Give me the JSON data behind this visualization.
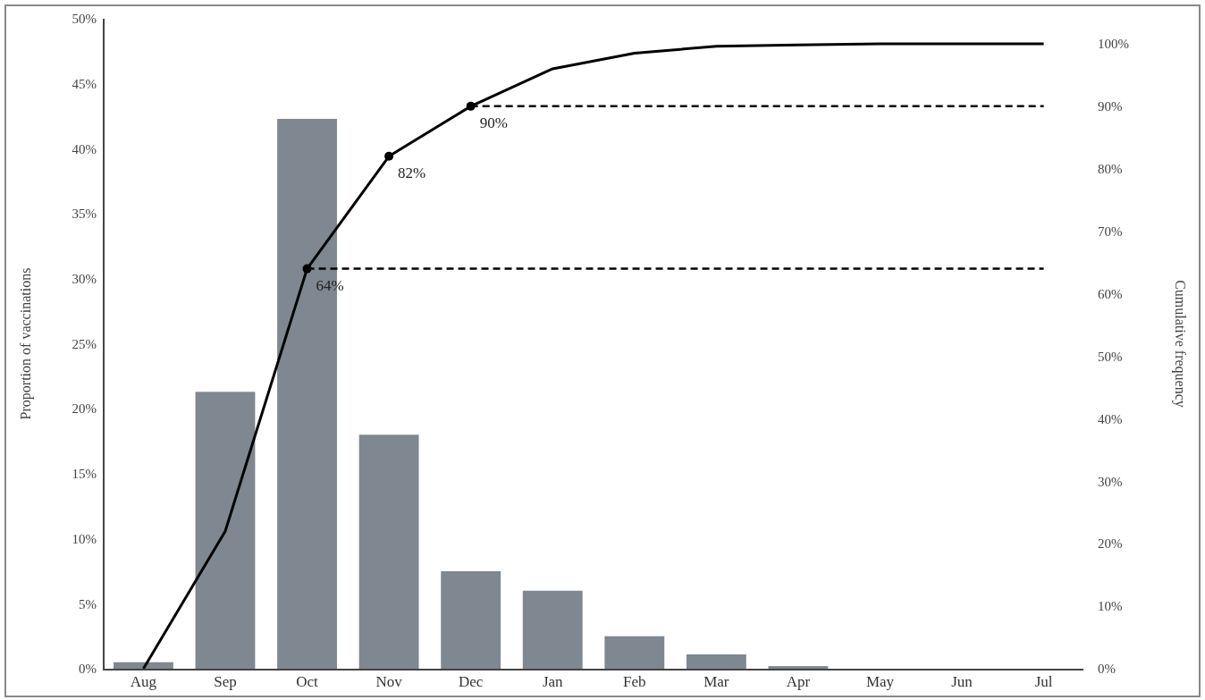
{
  "chart_data": {
    "type": "bar",
    "xlabel": null,
    "ylabel": "Proportion of vaccinations",
    "y2label": "Cumulative frequency",
    "categories": [
      "Aug",
      "Sep",
      "Oct",
      "Nov",
      "Dec",
      "Jan",
      "Feb",
      "Mar",
      "Apr",
      "May",
      "Jun",
      "Jul"
    ],
    "series": [
      {
        "color": "#7f8790",
        "values": [
          0.5,
          21.3,
          42.3,
          18,
          7.5,
          6,
          2.5,
          1.1,
          0.2,
          0,
          0,
          0
        ]
      },
      {
        "type": "line",
        "axis": "y2",
        "color": "#000000",
        "values": [
          0,
          22,
          64,
          82,
          90,
          96,
          98.5,
          99.6,
          99.8,
          100,
          100,
          100
        ]
      },
      {
        "type": "scatter",
        "axis": "y2",
        "color": "#000000",
        "x": [
          "Oct",
          "Nov",
          "Dec"
        ],
        "values": [
          64,
          82,
          90
        ]
      }
    ],
    "ylim": [
      0,
      50
    ],
    "yticks": [
      {
        "value": 0,
        "label": "0%"
      },
      {
        "value": 5,
        "label": "5%"
      },
      {
        "value": 10,
        "label": "10%"
      },
      {
        "value": 15,
        "label": "15%"
      },
      {
        "value": 20,
        "label": "20%"
      },
      {
        "value": 25,
        "label": "25%"
      },
      {
        "value": 30,
        "label": "30%"
      },
      {
        "value": 35,
        "label": "35%"
      },
      {
        "value": 40,
        "label": "40%"
      },
      {
        "value": 45,
        "label": "45%"
      },
      {
        "value": 50,
        "label": "50%"
      }
    ],
    "y2lim": [
      0,
      104
    ],
    "y2ticks": [
      {
        "value": 0,
        "label": "0%"
      },
      {
        "value": 10,
        "label": "10%"
      },
      {
        "value": 20,
        "label": "20%"
      },
      {
        "value": 30,
        "label": "30%"
      },
      {
        "value": 40,
        "label": "40%"
      },
      {
        "value": 50,
        "label": "50%"
      },
      {
        "value": 60,
        "label": "60%"
      },
      {
        "value": 70,
        "label": "70%"
      },
      {
        "value": 80,
        "label": "80%"
      },
      {
        "value": 90,
        "label": "90%"
      },
      {
        "value": 100,
        "label": "100%"
      }
    ],
    "ref_lines": [
      {
        "axis": "y2",
        "value": 64,
        "line_style": "dashed",
        "color": "#000000"
      },
      {
        "axis": "y2",
        "value": 90,
        "line_style": "dashed",
        "color": "#000000"
      }
    ],
    "annotations": [
      "64%",
      "82%",
      "90%"
    ],
    "grid": false
  }
}
